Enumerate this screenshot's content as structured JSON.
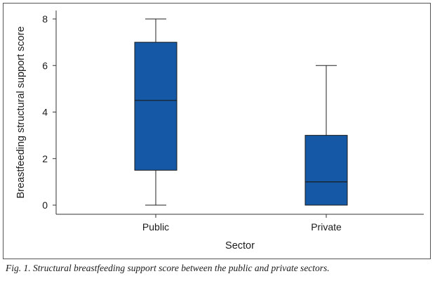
{
  "chart_data": {
    "type": "box",
    "xlabel": "Sector",
    "ylabel": "Breastfeeding structural support score",
    "ylim": [
      0,
      8
    ],
    "yticks": [
      0,
      2,
      4,
      6,
      8
    ],
    "categories": [
      "Public",
      "Private"
    ],
    "boxes": [
      {
        "category": "Public",
        "min": 0,
        "q1": 1.5,
        "median": 4.5,
        "q3": 7,
        "max": 8
      },
      {
        "category": "Private",
        "min": 0,
        "q1": 0,
        "median": 1,
        "q3": 3,
        "max": 6
      }
    ],
    "box_color": "#1558a6",
    "grid": false,
    "legend": "none"
  },
  "caption": "Fig. 1. Structural breastfeeding support score between the public and private sectors."
}
